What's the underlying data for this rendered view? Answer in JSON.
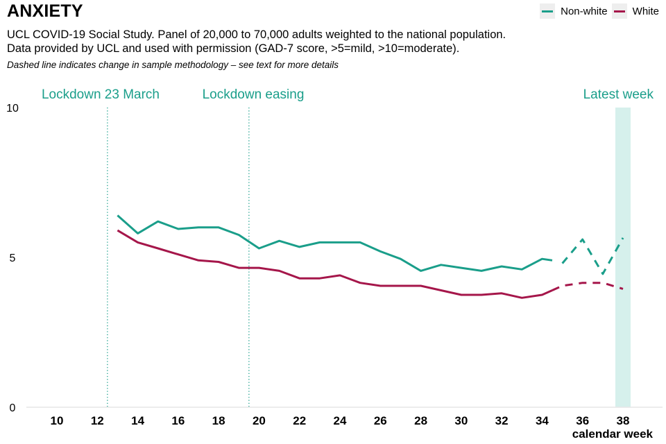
{
  "header": {
    "title": "ANXIETY",
    "subtitle_line1": "UCL COVID-19 Social Study. Panel of 20,000 to 70,000 adults weighted to the national population.",
    "subtitle_line2": "Data provided by UCL and used with permission (GAD-7 score, >5=mild, >10=moderate).",
    "note": "Dashed line indicates change in sample methodology – see text for more details"
  },
  "colors": {
    "non_white": "#1a9e8a",
    "white": "#a5164a",
    "annotation": "#1a9e8a",
    "highlight_band": "#d6f0ec",
    "axis_line": "#e6e6e6"
  },
  "chart_data": {
    "type": "line",
    "title": "ANXIETY",
    "xlabel": "calendar week",
    "ylabel": "",
    "xlim": [
      9,
      39.5
    ],
    "ylim": [
      0,
      10
    ],
    "xticks": [
      10,
      12,
      14,
      16,
      18,
      20,
      22,
      24,
      26,
      28,
      30,
      32,
      34,
      36,
      38
    ],
    "yticks": [
      0,
      5,
      10
    ],
    "grid": false,
    "legend_position": "top-right",
    "series": [
      {
        "name": "Non-white",
        "color_key": "non_white",
        "solid": {
          "x": [
            13,
            14,
            15,
            16,
            17,
            18,
            19,
            20,
            21,
            22,
            23,
            24,
            25,
            26,
            27,
            28,
            29,
            30,
            31,
            32,
            33,
            34,
            34.5
          ],
          "y": [
            6.4,
            5.8,
            6.2,
            5.95,
            6.0,
            6.0,
            5.75,
            5.3,
            5.55,
            5.35,
            5.5,
            5.5,
            5.5,
            5.2,
            4.95,
            4.55,
            4.75,
            4.65,
            4.55,
            4.7,
            4.6,
            4.95,
            4.9
          ]
        },
        "dashed": {
          "x": [
            35,
            36,
            37,
            38
          ],
          "y": [
            4.8,
            5.6,
            4.45,
            5.65
          ]
        }
      },
      {
        "name": "White",
        "color_key": "white",
        "solid": {
          "x": [
            13,
            14,
            15,
            16,
            17,
            18,
            19,
            20,
            21,
            22,
            23,
            24,
            25,
            26,
            27,
            28,
            29,
            30,
            31,
            32,
            33,
            34,
            34.5
          ],
          "y": [
            5.9,
            5.5,
            5.3,
            5.1,
            4.9,
            4.85,
            4.65,
            4.65,
            4.55,
            4.3,
            4.3,
            4.4,
            4.15,
            4.05,
            4.05,
            4.05,
            3.9,
            3.75,
            3.75,
            3.8,
            3.65,
            3.75,
            3.9
          ]
        },
        "dashed": {
          "x": [
            34.5,
            35,
            36,
            37,
            38
          ],
          "y": [
            3.9,
            4.05,
            4.15,
            4.15,
            3.95
          ]
        }
      }
    ],
    "annotations": [
      {
        "label": "Lockdown 23 March",
        "x": 12.5,
        "type": "vline-dotted"
      },
      {
        "label": "Lockdown easing",
        "x": 19.5,
        "type": "vline-dotted"
      },
      {
        "label": "Latest week",
        "x": 38,
        "type": "band"
      }
    ]
  }
}
